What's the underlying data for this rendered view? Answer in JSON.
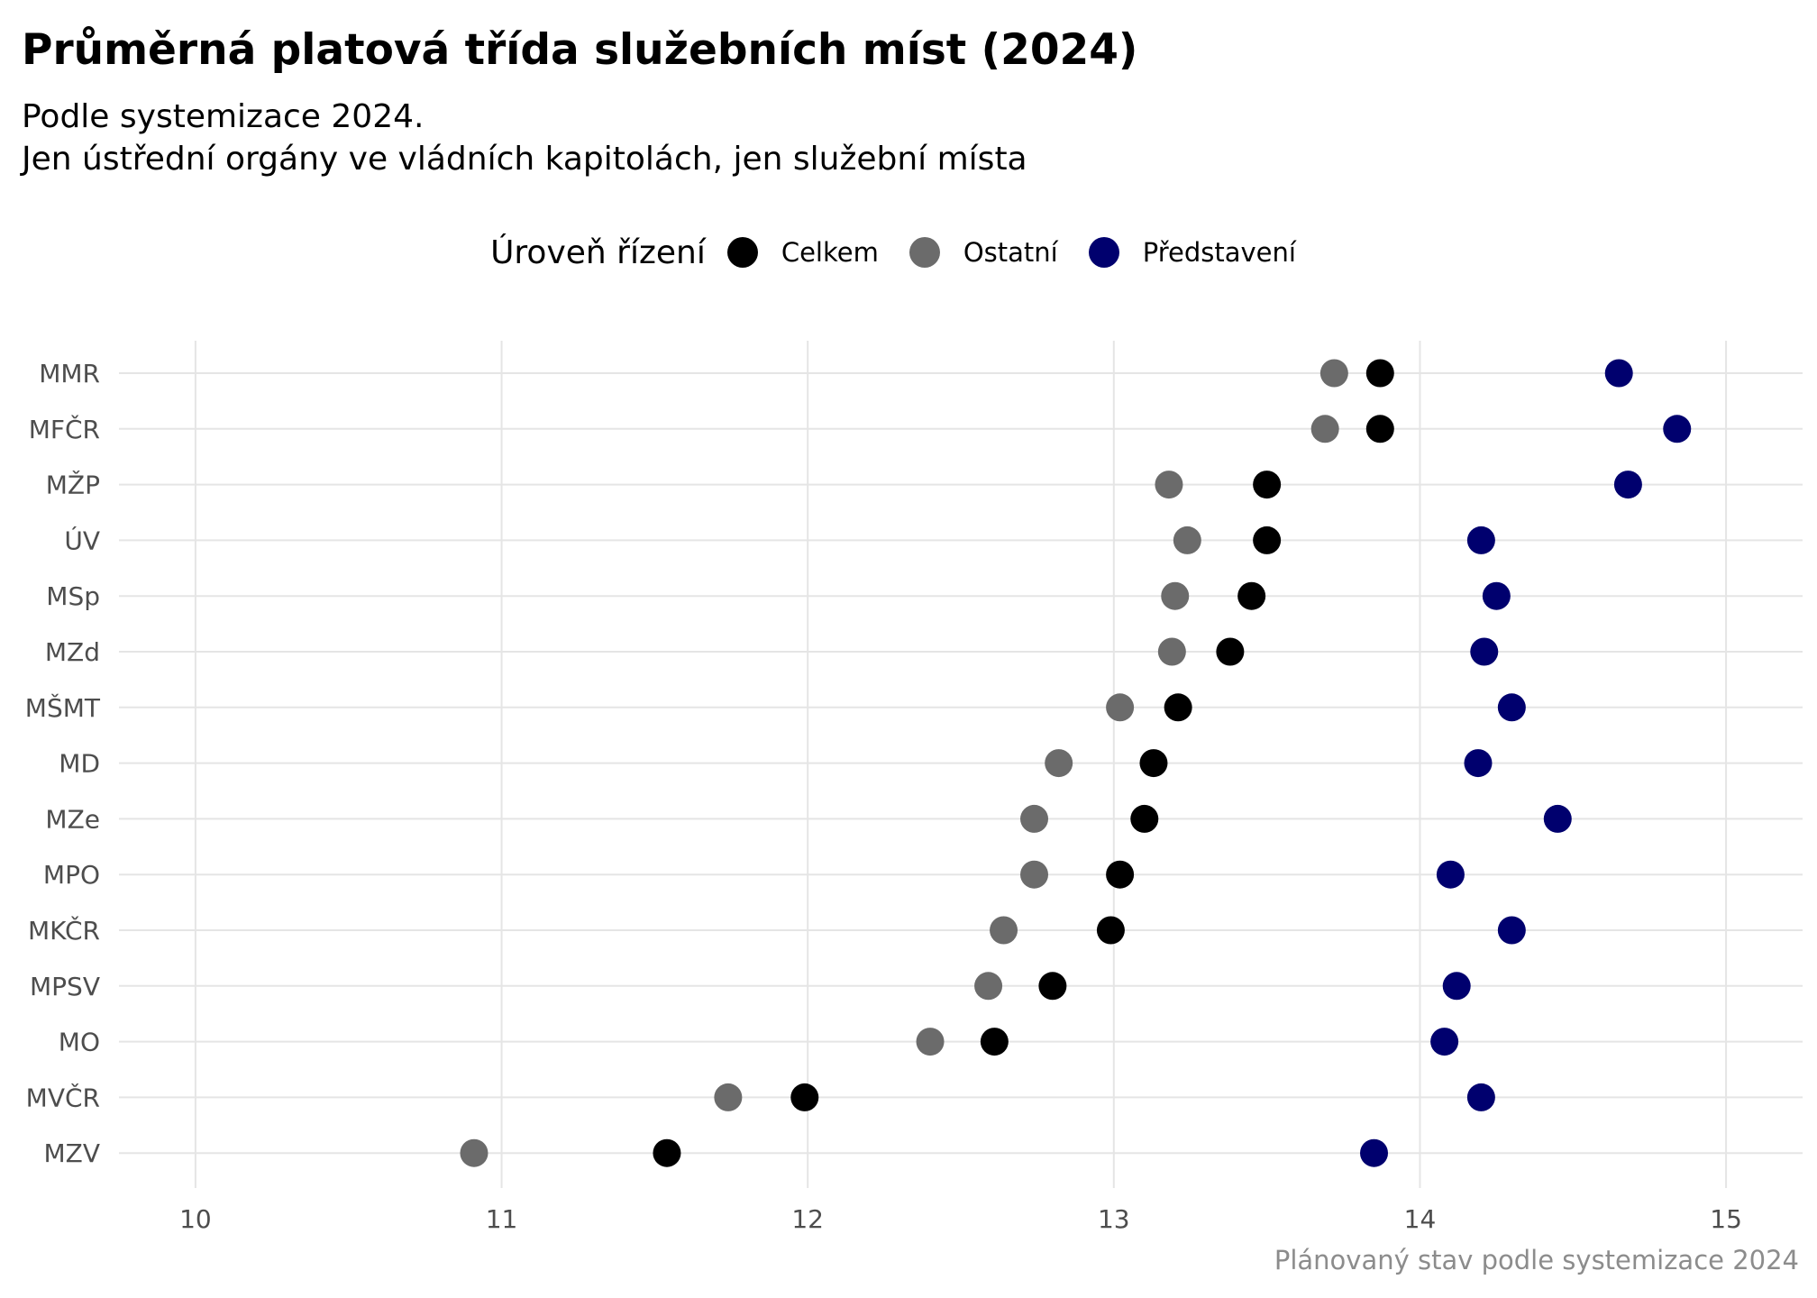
{
  "chart_data": {
    "type": "scatter",
    "title": "Průměrná platová třída služebních míst (2024)",
    "subtitle": [
      "Podle systemizace 2024.",
      "Jen ústřední orgány ve vládních kapitolách, jen služební místa"
    ],
    "caption": "Plánovaný stav podle systemizace 2024",
    "legend": {
      "title": "Úroveň řízení",
      "position": "top"
    },
    "xlim": [
      9.75,
      15.25
    ],
    "x_ticks": [
      10,
      11,
      12,
      13,
      14,
      15
    ],
    "grid": true,
    "categories": [
      "MMR",
      "MFČR",
      "MŽP",
      "ÚV",
      "MSp",
      "MZd",
      "MŠMT",
      "MD",
      "MZe",
      "MPO",
      "MKČR",
      "MPSV",
      "MO",
      "MVČR",
      "MZV"
    ],
    "series": [
      {
        "name": "Celkem",
        "color": "#000000",
        "values": [
          13.87,
          13.87,
          13.5,
          13.5,
          13.45,
          13.38,
          13.21,
          13.13,
          13.1,
          13.02,
          12.99,
          12.8,
          12.61,
          11.99,
          11.54
        ]
      },
      {
        "name": "Ostatní",
        "color": "#6b6b6b",
        "values": [
          13.72,
          13.69,
          13.18,
          13.24,
          13.2,
          13.19,
          13.02,
          12.82,
          12.74,
          12.74,
          12.64,
          12.59,
          12.4,
          11.74,
          10.91
        ]
      },
      {
        "name": "Představení",
        "color": "#00006e",
        "values": [
          14.65,
          14.84,
          14.68,
          14.2,
          14.25,
          14.21,
          14.3,
          14.19,
          14.45,
          14.1,
          14.3,
          14.12,
          14.08,
          14.2,
          13.85
        ]
      }
    ]
  }
}
